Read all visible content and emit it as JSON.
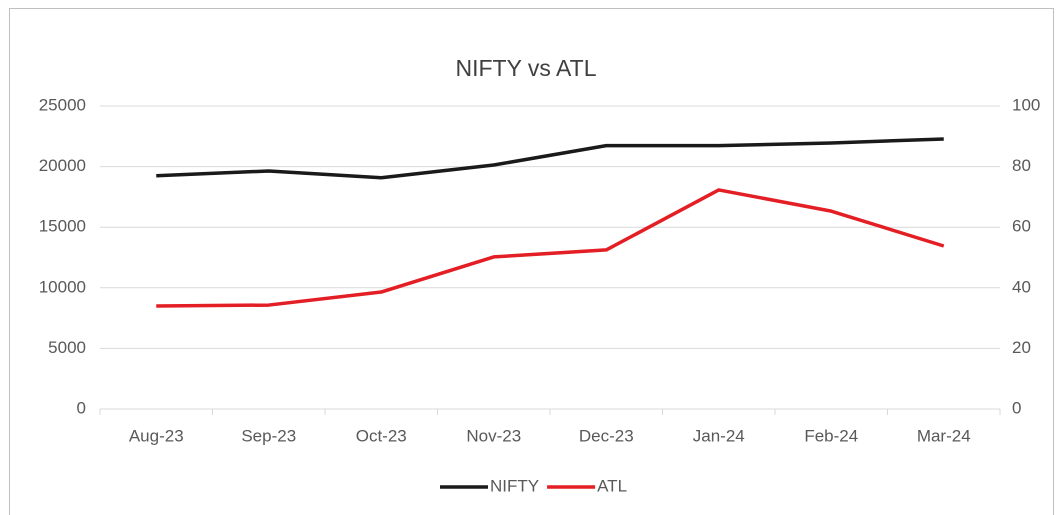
{
  "chart_data": {
    "type": "line",
    "title": "NIFTY vs ATL",
    "categories": [
      "Aug-23",
      "Sep-23",
      "Oct-23",
      "Nov-23",
      "Dec-23",
      "Jan-24",
      "Feb-24",
      "Mar-24"
    ],
    "series": [
      {
        "name": "NIFTY",
        "color": "#1a1a1a",
        "values": [
          19250,
          19640,
          19080,
          20130,
          21730,
          21730,
          21950,
          22280
        ]
      },
      {
        "name": "ATL",
        "color": "#e31e24",
        "axis": "y2",
        "values": [
          34.0,
          34.3,
          38.6,
          50.2,
          52.5,
          72.3,
          65.3,
          53.8
        ]
      }
    ],
    "ylim": [
      0,
      25000
    ],
    "yticks": [
      0,
      5000,
      10000,
      15000,
      20000,
      25000
    ],
    "y2lim": [
      0,
      100
    ],
    "y2ticks": [
      0,
      20,
      40,
      60,
      80,
      100
    ],
    "grid": true,
    "legend": "bottom"
  }
}
